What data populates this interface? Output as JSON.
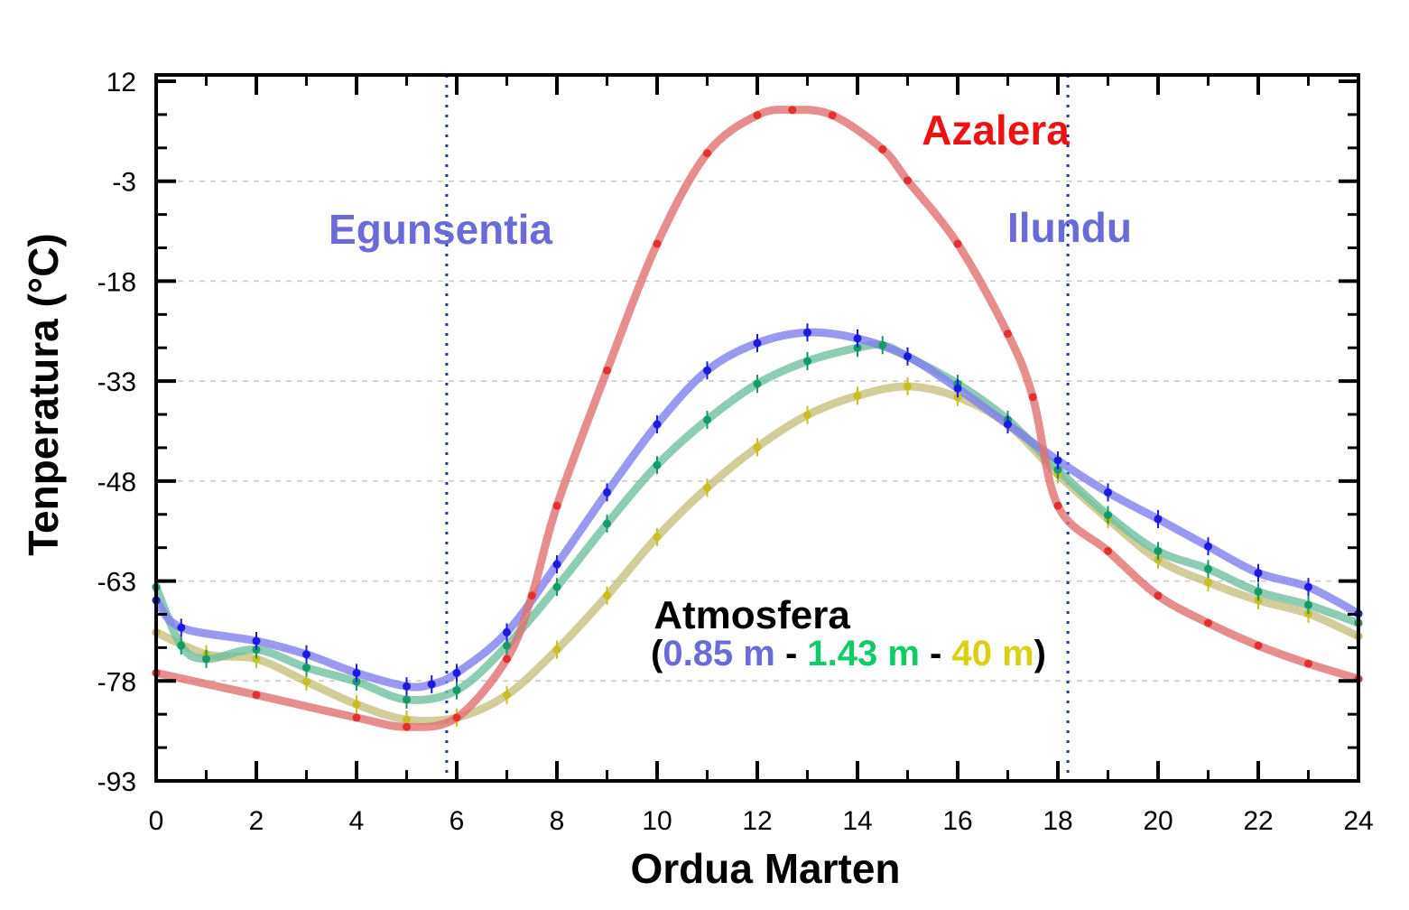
{
  "chart_data": {
    "type": "line",
    "title": "",
    "xlabel": "Ordua Marten",
    "ylabel": "Tenperatura (°C)",
    "xlim": [
      0,
      24
    ],
    "ylim": [
      -93,
      12
    ],
    "xticks": [
      0,
      2,
      4,
      6,
      8,
      10,
      12,
      14,
      16,
      18,
      20,
      22,
      24
    ],
    "yticks": [
      12,
      -3,
      -18,
      -33,
      -48,
      -63,
      -78,
      -93
    ],
    "grid": "horizontal dashed",
    "vlines": [
      5.8,
      18.2
    ],
    "annotations": {
      "sunrise": "Egunsentia",
      "sunset": "Ilundu",
      "surface": "Azalera",
      "atmosphere": "Atmosfera",
      "open_paren": "(",
      "h1": "0.85 m",
      "sep1": " - ",
      "h2": "1.43 m",
      "sep2": " - ",
      "h3": "40 m",
      "close_paren": ")"
    },
    "series": [
      {
        "name": "Azalera",
        "color": "#e33030",
        "x": [
          0,
          2,
          4,
          5,
          6,
          7,
          7.5,
          8,
          9,
          10,
          11,
          12,
          12.7,
          13.5,
          14.5,
          15,
          16,
          17,
          17.5,
          18,
          19,
          20,
          21,
          22,
          23,
          24
        ],
        "y": [
          -76.8,
          -80.1,
          -83.5,
          -84.9,
          -83.5,
          -74.7,
          -65.2,
          -51.7,
          -31.4,
          -12.4,
          1.2,
          6.9,
          7.7,
          6.9,
          1.8,
          -2.9,
          -12.4,
          -25.9,
          -35.4,
          -51.7,
          -58.5,
          -65.2,
          -69.3,
          -72.7,
          -75.4,
          -77.7
        ]
      },
      {
        "name": "0.85 m",
        "color": "#1a1ae0",
        "x": [
          0,
          0.5,
          2,
          3,
          4,
          5,
          5.5,
          6,
          7,
          8,
          9,
          10,
          11,
          12,
          13,
          14,
          15,
          16,
          17,
          18,
          19,
          20,
          21,
          22,
          23,
          24
        ],
        "y": [
          -65.9,
          -70,
          -72,
          -74,
          -76.8,
          -78.8,
          -78.5,
          -76.8,
          -70.7,
          -60.5,
          -49.7,
          -39.5,
          -31.4,
          -27.3,
          -25.7,
          -26.6,
          -29.3,
          -34.1,
          -39.5,
          -44.9,
          -49.7,
          -53.7,
          -57.8,
          -61.8,
          -63.9,
          -67.9
        ]
      },
      {
        "name": "1.43 m",
        "color": "#159a6a",
        "x": [
          0,
          0.5,
          1,
          2,
          3,
          4,
          5,
          6,
          7,
          8,
          9,
          10,
          11,
          12,
          13,
          14,
          14.5,
          15,
          16,
          17,
          18,
          19,
          20,
          21,
          22,
          23,
          24
        ],
        "y": [
          -63.9,
          -72.7,
          -74.7,
          -73.3,
          -76,
          -78.1,
          -80.8,
          -79.4,
          -72.7,
          -63.9,
          -54.4,
          -45.6,
          -38.8,
          -33.4,
          -30,
          -28,
          -27.6,
          -29.3,
          -33.4,
          -38.8,
          -46.3,
          -53.1,
          -58.5,
          -61.2,
          -64.6,
          -66.6,
          -69.3
        ]
      },
      {
        "name": "40 m",
        "color": "#c8c020",
        "x": [
          0,
          1,
          2,
          3,
          4,
          5,
          6,
          7,
          8,
          9,
          10,
          11,
          12,
          13,
          14,
          15,
          16,
          17,
          18,
          19,
          20,
          21,
          22,
          23,
          24
        ],
        "y": [
          -70.7,
          -74,
          -74.7,
          -78.1,
          -81.5,
          -83.8,
          -83.5,
          -80.1,
          -73.3,
          -65.2,
          -56.4,
          -49,
          -42.9,
          -38.1,
          -35.2,
          -33.8,
          -35.4,
          -39.5,
          -47,
          -53.7,
          -59.8,
          -63.2,
          -65.9,
          -67.9,
          -71.3
        ]
      }
    ],
    "fit_colors": [
      "#e07070",
      "#8080ee",
      "#70c0a0",
      "#c8c080"
    ],
    "label_colors": {
      "sunrise": "#6a6ad8",
      "surface": "#ee1111",
      "atmosphere": "#000000",
      "h1": "#6a6ad8",
      "h2": "#11cc66",
      "h3": "#d8d010"
    }
  }
}
